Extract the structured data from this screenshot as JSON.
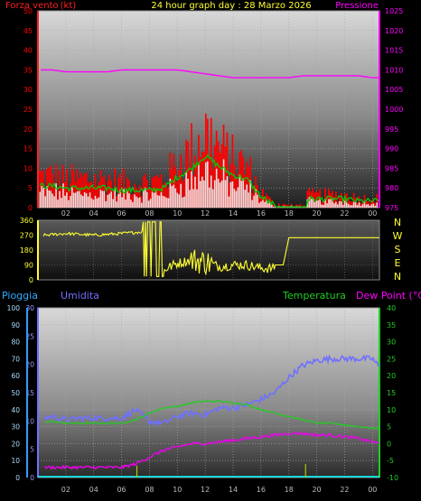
{
  "header": {
    "title": "24 hour graph day : 28 Marzo 2026",
    "wind_label": "Forza vento",
    "wind_unit": "(kt)",
    "pressure_label": "Pressione"
  },
  "legend_bottom": {
    "rain": "Pioggia",
    "humidity": "Umidita",
    "temperature": "Temperatura",
    "dewpoint": "Dew Point (°C)"
  },
  "compass": [
    "N",
    "W",
    "S",
    "E",
    "N"
  ],
  "colors": {
    "wind_red": "#ff0000",
    "wind_green": "#00cc00",
    "wind_white": "#ffffff",
    "pressure": "#ff00ff",
    "direction": "#ffff33",
    "rain_axis": "#3399ff",
    "rain": "#00ffff",
    "humidity": "#7070ff",
    "temperature": "#22cc22",
    "dewpoint": "#ee00ee",
    "rain_bar": "#aacc00"
  },
  "chart_data": [
    {
      "type": "area",
      "x_hours": [
        1,
        2,
        3,
        4,
        5,
        6,
        7,
        8,
        9,
        10,
        11,
        12,
        13,
        14,
        15,
        16,
        17,
        18,
        19,
        20,
        21,
        22,
        23,
        24
      ],
      "xticks": [
        "02",
        "04",
        "06",
        "08",
        "10",
        "12",
        "14",
        "16",
        "18",
        "20",
        "22",
        "00"
      ],
      "ylim_left": [
        0,
        50
      ],
      "yticks_left": [
        "0",
        "5",
        "10",
        "15",
        "20",
        "25",
        "30",
        "35",
        "40",
        "45",
        "50"
      ],
      "ylim_right": [
        975,
        1025
      ],
      "yticks_right": [
        "975",
        "980",
        "985",
        "990",
        "995",
        "1000",
        "1005",
        "1010",
        "1015",
        "1020",
        "1025"
      ],
      "series": [
        {
          "name": "Forza vento",
          "axis": "left",
          "values": [
            10,
            9,
            9,
            9,
            9,
            8,
            8,
            8,
            9,
            14,
            18,
            24,
            19,
            15,
            13,
            5,
            1,
            2,
            4,
            4,
            4,
            4,
            3,
            3
          ]
        },
        {
          "name": "Pressione",
          "axis": "right",
          "values": [
            1010,
            1009.5,
            1009.5,
            1009.5,
            1009.5,
            1010,
            1010,
            1010,
            1010,
            1010,
            1009.5,
            1009,
            1008.5,
            1008,
            1008,
            1008,
            1008,
            1008,
            1008.5,
            1008.5,
            1008.5,
            1008.5,
            1008.5,
            1008
          ]
        }
      ]
    },
    {
      "type": "scatter",
      "x_hours": [
        0.5,
        2,
        4,
        6,
        7.5,
        8.3,
        9,
        10,
        11,
        12,
        13,
        14,
        15,
        16,
        17,
        17.6,
        18,
        20,
        22,
        24
      ],
      "xticks": [
        "02",
        "04",
        "06",
        "08",
        "10",
        "12",
        "14",
        "16",
        "18",
        "20",
        "22",
        "00"
      ],
      "ylim": [
        0,
        360
      ],
      "yticks": [
        "0",
        "90",
        "180",
        "270",
        "360"
      ],
      "series": [
        {
          "name": "",
          "values": [
            270,
            280,
            270,
            280,
            290,
            120,
            60,
            100,
            120,
            110,
            80,
            90,
            90,
            70,
            70,
            90,
            255,
            255,
            255,
            255
          ]
        }
      ]
    },
    {
      "type": "line",
      "x_hours": [
        0.5,
        1,
        2,
        3,
        4,
        5,
        6,
        7,
        8,
        9,
        10,
        11,
        12,
        13,
        14,
        15,
        16,
        17,
        18,
        19,
        20,
        21,
        22,
        23,
        24,
        24.5
      ],
      "xticks": [
        "02",
        "04",
        "06",
        "08",
        "10",
        "12",
        "14",
        "16",
        "18",
        "20",
        "22",
        "00"
      ],
      "axes": {
        "rain": {
          "ylim": [
            0,
            100
          ],
          "ticks": [
            "0",
            "10",
            "20",
            "30",
            "40",
            "50",
            "60",
            "70",
            "80",
            "90",
            "100"
          ]
        },
        "humidity": {
          "ylim": [
            0,
            30
          ],
          "ticks": [
            "0",
            "5",
            "10",
            "15",
            "20",
            "25",
            "30"
          ]
        },
        "temperature": {
          "ylim": [
            -10,
            40
          ],
          "ticks": [
            "-10",
            "-5",
            "0",
            "5",
            "10",
            "15",
            "20",
            "25",
            "30",
            "35",
            "40"
          ]
        }
      },
      "series": [
        {
          "name": "Umidita",
          "axis": "rain",
          "values": [
            35,
            36,
            34,
            35,
            35,
            35,
            35,
            40,
            33,
            32,
            36,
            38,
            37,
            41,
            41,
            43,
            46,
            50,
            59,
            66,
            69,
            70,
            70,
            70,
            70,
            65
          ]
        },
        {
          "name": "Temperatura",
          "axis": "temperature",
          "values": [
            6.5,
            6.5,
            6,
            6,
            6,
            6,
            6,
            7,
            9,
            10.5,
            11,
            12,
            12.5,
            12.5,
            12,
            11.5,
            10,
            9,
            8,
            7,
            6,
            6,
            5.5,
            5,
            4.5,
            4.5
          ]
        },
        {
          "name": "Dew Point (°C)",
          "axis": "temperature",
          "values": [
            -7,
            -7,
            -7,
            -7,
            -7,
            -7,
            -7,
            -6,
            -4,
            -2,
            -1,
            0,
            0,
            0.5,
            1,
            1.5,
            2,
            2.5,
            3,
            3,
            2.5,
            2.5,
            2,
            1.5,
            0.5,
            0
          ]
        },
        {
          "name": "Pioggia",
          "axis": "rain",
          "values": [
            0,
            0,
            0,
            0,
            0,
            0,
            0,
            0,
            0,
            0,
            0,
            0,
            0,
            0,
            0,
            0,
            0,
            0,
            0,
            0,
            0,
            0,
            0,
            0,
            0,
            0
          ]
        }
      ],
      "rain_bars": [
        {
          "x": 7.1,
          "v": 7
        },
        {
          "x": 19.2,
          "v": 8
        }
      ]
    }
  ]
}
